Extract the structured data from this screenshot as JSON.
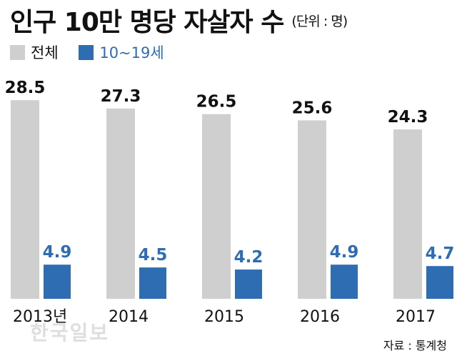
{
  "chart_data": {
    "type": "bar",
    "title": "인구 10만 명당 자살자 수",
    "unit": "(단위 : 명)",
    "categories": [
      "2013년",
      "2014",
      "2015",
      "2016",
      "2017"
    ],
    "series": [
      {
        "name": "전체",
        "color": "#cfcfcf",
        "values": [
          28.5,
          27.3,
          26.5,
          25.6,
          24.3
        ]
      },
      {
        "name": "10~19세",
        "color": "#2f6db3",
        "values": [
          4.9,
          4.5,
          4.2,
          4.9,
          4.7
        ]
      }
    ],
    "value_label_colors": [
      "#111111",
      "#2f6db3"
    ],
    "legend_position": "top-left",
    "grid": false
  },
  "source": "자료 : 통계청",
  "watermark": "한국일보"
}
